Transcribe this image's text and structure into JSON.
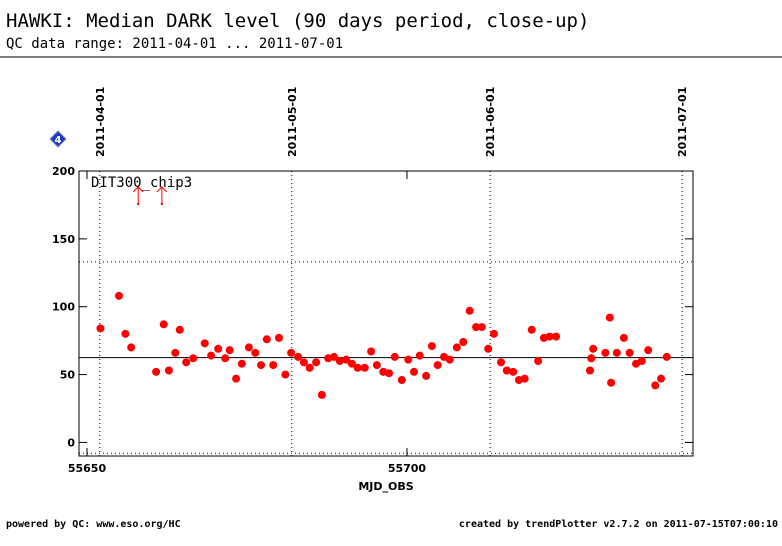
{
  "chart_data": {
    "type": "scatter",
    "title": "HAWKI: Median DARK level (90 days period, close-up)",
    "subtitle": "QC data range: 2011-04-01 ... 2011-07-01",
    "x_label": "MJD_OBS",
    "legend_label": "DIT300_chip3",
    "badge": "4",
    "footer_left": "powered by QC: www.eso.org/HC",
    "footer_right": "created by trendPlotter v2.7.2 on 2011-07-15T07:00:10",
    "xlim": [
      55648.75,
      55744.7
    ],
    "ylim": [
      -10,
      200
    ],
    "xticks": [
      55650,
      55700
    ],
    "yticks": [
      0,
      50,
      100,
      150,
      200
    ],
    "date_ticks": [
      {
        "value": 55652,
        "label": "2011-04-01"
      },
      {
        "value": 55682,
        "label": "2011-05-01"
      },
      {
        "value": 55713,
        "label": "2011-06-01"
      },
      {
        "value": 55743,
        "label": "2011-07-01"
      }
    ],
    "median": 62.5,
    "limits": [
      133,
      -8
    ],
    "color": "#ff0000",
    "x": [
      55652.1,
      55655,
      55656,
      55656.9,
      55660.8,
      55662,
      55662.8,
      55663.8,
      55664.5,
      55665.5,
      55666.6,
      55668.4,
      55669.4,
      55670.5,
      55671.6,
      55672.3,
      55673.3,
      55674.2,
      55675.3,
      55676.3,
      55677.2,
      55678.1,
      55679.1,
      55680,
      55681,
      55681.9,
      55683,
      55683.9,
      55684.8,
      55685.8,
      55686.7,
      55687.7,
      55688.6,
      55689.5,
      55690.5,
      55691.4,
      55692.3,
      55693.4,
      55694.4,
      55695.3,
      55696.3,
      55697.2,
      55698.1,
      55699.2,
      55700.2,
      55701.1,
      55702,
      55703,
      55703.9,
      55704.8,
      55705.8,
      55706.7,
      55707.8,
      55708.8,
      55709.8,
      55710.8,
      55711.7,
      55712.7,
      55713.6,
      55714.7,
      55715.6,
      55716.6,
      55717.5,
      55718.4,
      55719.5,
      55720.5,
      55721.4,
      55722.3,
      55723.3,
      55728.6,
      55728.8,
      55729.1,
      55731,
      55731.7,
      55731.9,
      55732.8,
      55733.9,
      55734.8,
      55735.8,
      55736.7,
      55737.7,
      55738.8,
      55739.7,
      55740.6
    ],
    "values": [
      84,
      108,
      80,
      70,
      52,
      87,
      53,
      66,
      83,
      59,
      62,
      73,
      64,
      69,
      62,
      68,
      47,
      58,
      70,
      66,
      57,
      76,
      57,
      77,
      50,
      66,
      63,
      59,
      55,
      59,
      35,
      62,
      63,
      60,
      61,
      58,
      55,
      55,
      67,
      57,
      52,
      51,
      63,
      46,
      61,
      52,
      64,
      49,
      71,
      57,
      63,
      61,
      70,
      74,
      97,
      85,
      85,
      69,
      80,
      59,
      53,
      52,
      46,
      47,
      83,
      60,
      77,
      78,
      78,
      53,
      62,
      69,
      66,
      92,
      44,
      66,
      77,
      66,
      58,
      60,
      68,
      42,
      47,
      63
    ],
    "outliers_x": [
      55658,
      55661.7
    ]
  }
}
